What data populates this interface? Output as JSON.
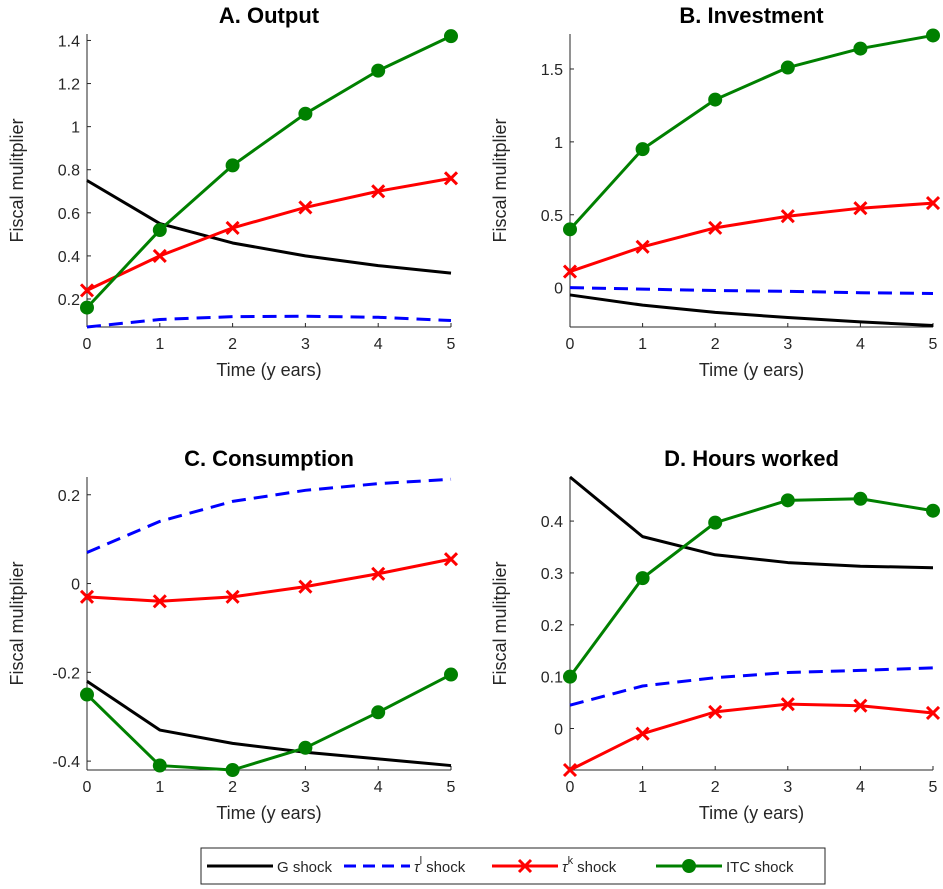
{
  "colors": {
    "g_shock": "#000000",
    "tau_l_shock": "#0000ff",
    "tau_k_shock": "#ff0000",
    "itc_shock": "#008000"
  },
  "legend": {
    "position": "bottom-center",
    "entries": [
      {
        "key": "g",
        "label": "G shock",
        "style": "solid",
        "marker": "none"
      },
      {
        "key": "tl",
        "label": "shock",
        "symbol": "τ",
        "superscript": "l",
        "style": "dashed",
        "marker": "none"
      },
      {
        "key": "tk",
        "label": "shock",
        "symbol": "τ",
        "superscript": "k",
        "style": "solid",
        "marker": "x"
      },
      {
        "key": "itc",
        "label": "ITC shock",
        "style": "solid",
        "marker": "circle"
      }
    ]
  },
  "chart_data": [
    {
      "type": "line",
      "title": "A. Output",
      "xlabel": "Time (y ears)",
      "ylabel": "Fiscal mulitplier",
      "x": [
        0,
        1,
        2,
        3,
        4,
        5
      ],
      "xticks": [
        "0",
        "1",
        "2",
        "3",
        "4",
        "5"
      ],
      "xlim": [
        0,
        5
      ],
      "ylim": [
        0.07,
        1.43
      ],
      "yticks": [
        0.2,
        0.4,
        0.6,
        0.8,
        1.0,
        1.2,
        1.4
      ],
      "yticklabels": [
        "0.2",
        "0.4",
        "0.6",
        "0.8",
        "1",
        "1.2",
        "1.4"
      ],
      "grid": false,
      "series": [
        {
          "key": "g",
          "values": [
            0.75,
            0.55,
            0.46,
            0.4,
            0.355,
            0.32
          ]
        },
        {
          "key": "tl",
          "values": [
            0.07,
            0.105,
            0.118,
            0.12,
            0.115,
            0.1
          ]
        },
        {
          "key": "tk",
          "values": [
            0.24,
            0.4,
            0.53,
            0.625,
            0.7,
            0.76
          ]
        },
        {
          "key": "itc",
          "values": [
            0.16,
            0.52,
            0.82,
            1.06,
            1.26,
            1.42
          ]
        }
      ]
    },
    {
      "type": "line",
      "title": "B. Investment",
      "xlabel": "Time (y ears)",
      "ylabel": "Fiscal mulitplier",
      "x": [
        0,
        1,
        2,
        3,
        4,
        5
      ],
      "xticks": [
        "0",
        "1",
        "2",
        "3",
        "4",
        "5"
      ],
      "xlim": [
        0,
        5
      ],
      "ylim": [
        -0.27,
        1.74
      ],
      "yticks": [
        0,
        0.5,
        1.0,
        1.5
      ],
      "yticklabels": [
        "0",
        "0.5",
        "1",
        "1.5"
      ],
      "grid": false,
      "series": [
        {
          "key": "g",
          "values": [
            -0.05,
            -0.12,
            -0.17,
            -0.205,
            -0.235,
            -0.26
          ]
        },
        {
          "key": "tl",
          "values": [
            0.0,
            -0.01,
            -0.02,
            -0.025,
            -0.035,
            -0.04
          ]
        },
        {
          "key": "tk",
          "values": [
            0.11,
            0.28,
            0.41,
            0.49,
            0.545,
            0.58
          ]
        },
        {
          "key": "itc",
          "values": [
            0.4,
            0.95,
            1.29,
            1.51,
            1.64,
            1.73
          ]
        }
      ]
    },
    {
      "type": "line",
      "title": "C. Consumption",
      "xlabel": "Time (y ears)",
      "ylabel": "Fiscal mulitplier",
      "x": [
        0,
        1,
        2,
        3,
        4,
        5
      ],
      "xticks": [
        "0",
        "1",
        "2",
        "3",
        "4",
        "5"
      ],
      "xlim": [
        0,
        5
      ],
      "ylim": [
        -0.42,
        0.24
      ],
      "yticks": [
        -0.4,
        -0.2,
        0,
        0.2
      ],
      "yticklabels": [
        "-0.4",
        "-0.2",
        "0",
        "0.2"
      ],
      "grid": false,
      "series": [
        {
          "key": "g",
          "values": [
            -0.22,
            -0.33,
            -0.36,
            -0.38,
            -0.395,
            -0.41
          ]
        },
        {
          "key": "tl",
          "values": [
            0.07,
            0.14,
            0.185,
            0.21,
            0.225,
            0.235
          ]
        },
        {
          "key": "tk",
          "values": [
            -0.03,
            -0.04,
            -0.03,
            -0.007,
            0.022,
            0.055
          ]
        },
        {
          "key": "itc",
          "values": [
            -0.25,
            -0.41,
            -0.42,
            -0.37,
            -0.29,
            -0.205
          ]
        }
      ]
    },
    {
      "type": "line",
      "title": "D. Hours worked",
      "xlabel": "Time (y ears)",
      "ylabel": "Fiscal mulitplier",
      "x": [
        0,
        1,
        2,
        3,
        4,
        5
      ],
      "xticks": [
        "0",
        "1",
        "2",
        "3",
        "4",
        "5"
      ],
      "xlim": [
        0,
        5
      ],
      "ylim": [
        -0.08,
        0.485
      ],
      "yticks": [
        0,
        0.1,
        0.2,
        0.3,
        0.4
      ],
      "yticklabels": [
        "0",
        "0.1",
        "0.2",
        "0.3",
        "0.4"
      ],
      "grid": false,
      "series": [
        {
          "key": "g",
          "values": [
            0.485,
            0.37,
            0.335,
            0.32,
            0.313,
            0.31
          ]
        },
        {
          "key": "tl",
          "values": [
            0.045,
            0.082,
            0.098,
            0.108,
            0.112,
            0.117
          ]
        },
        {
          "key": "tk",
          "values": [
            -0.08,
            -0.01,
            0.032,
            0.047,
            0.044,
            0.03
          ]
        },
        {
          "key": "itc",
          "values": [
            0.1,
            0.29,
            0.397,
            0.44,
            0.443,
            0.42
          ]
        }
      ]
    }
  ]
}
